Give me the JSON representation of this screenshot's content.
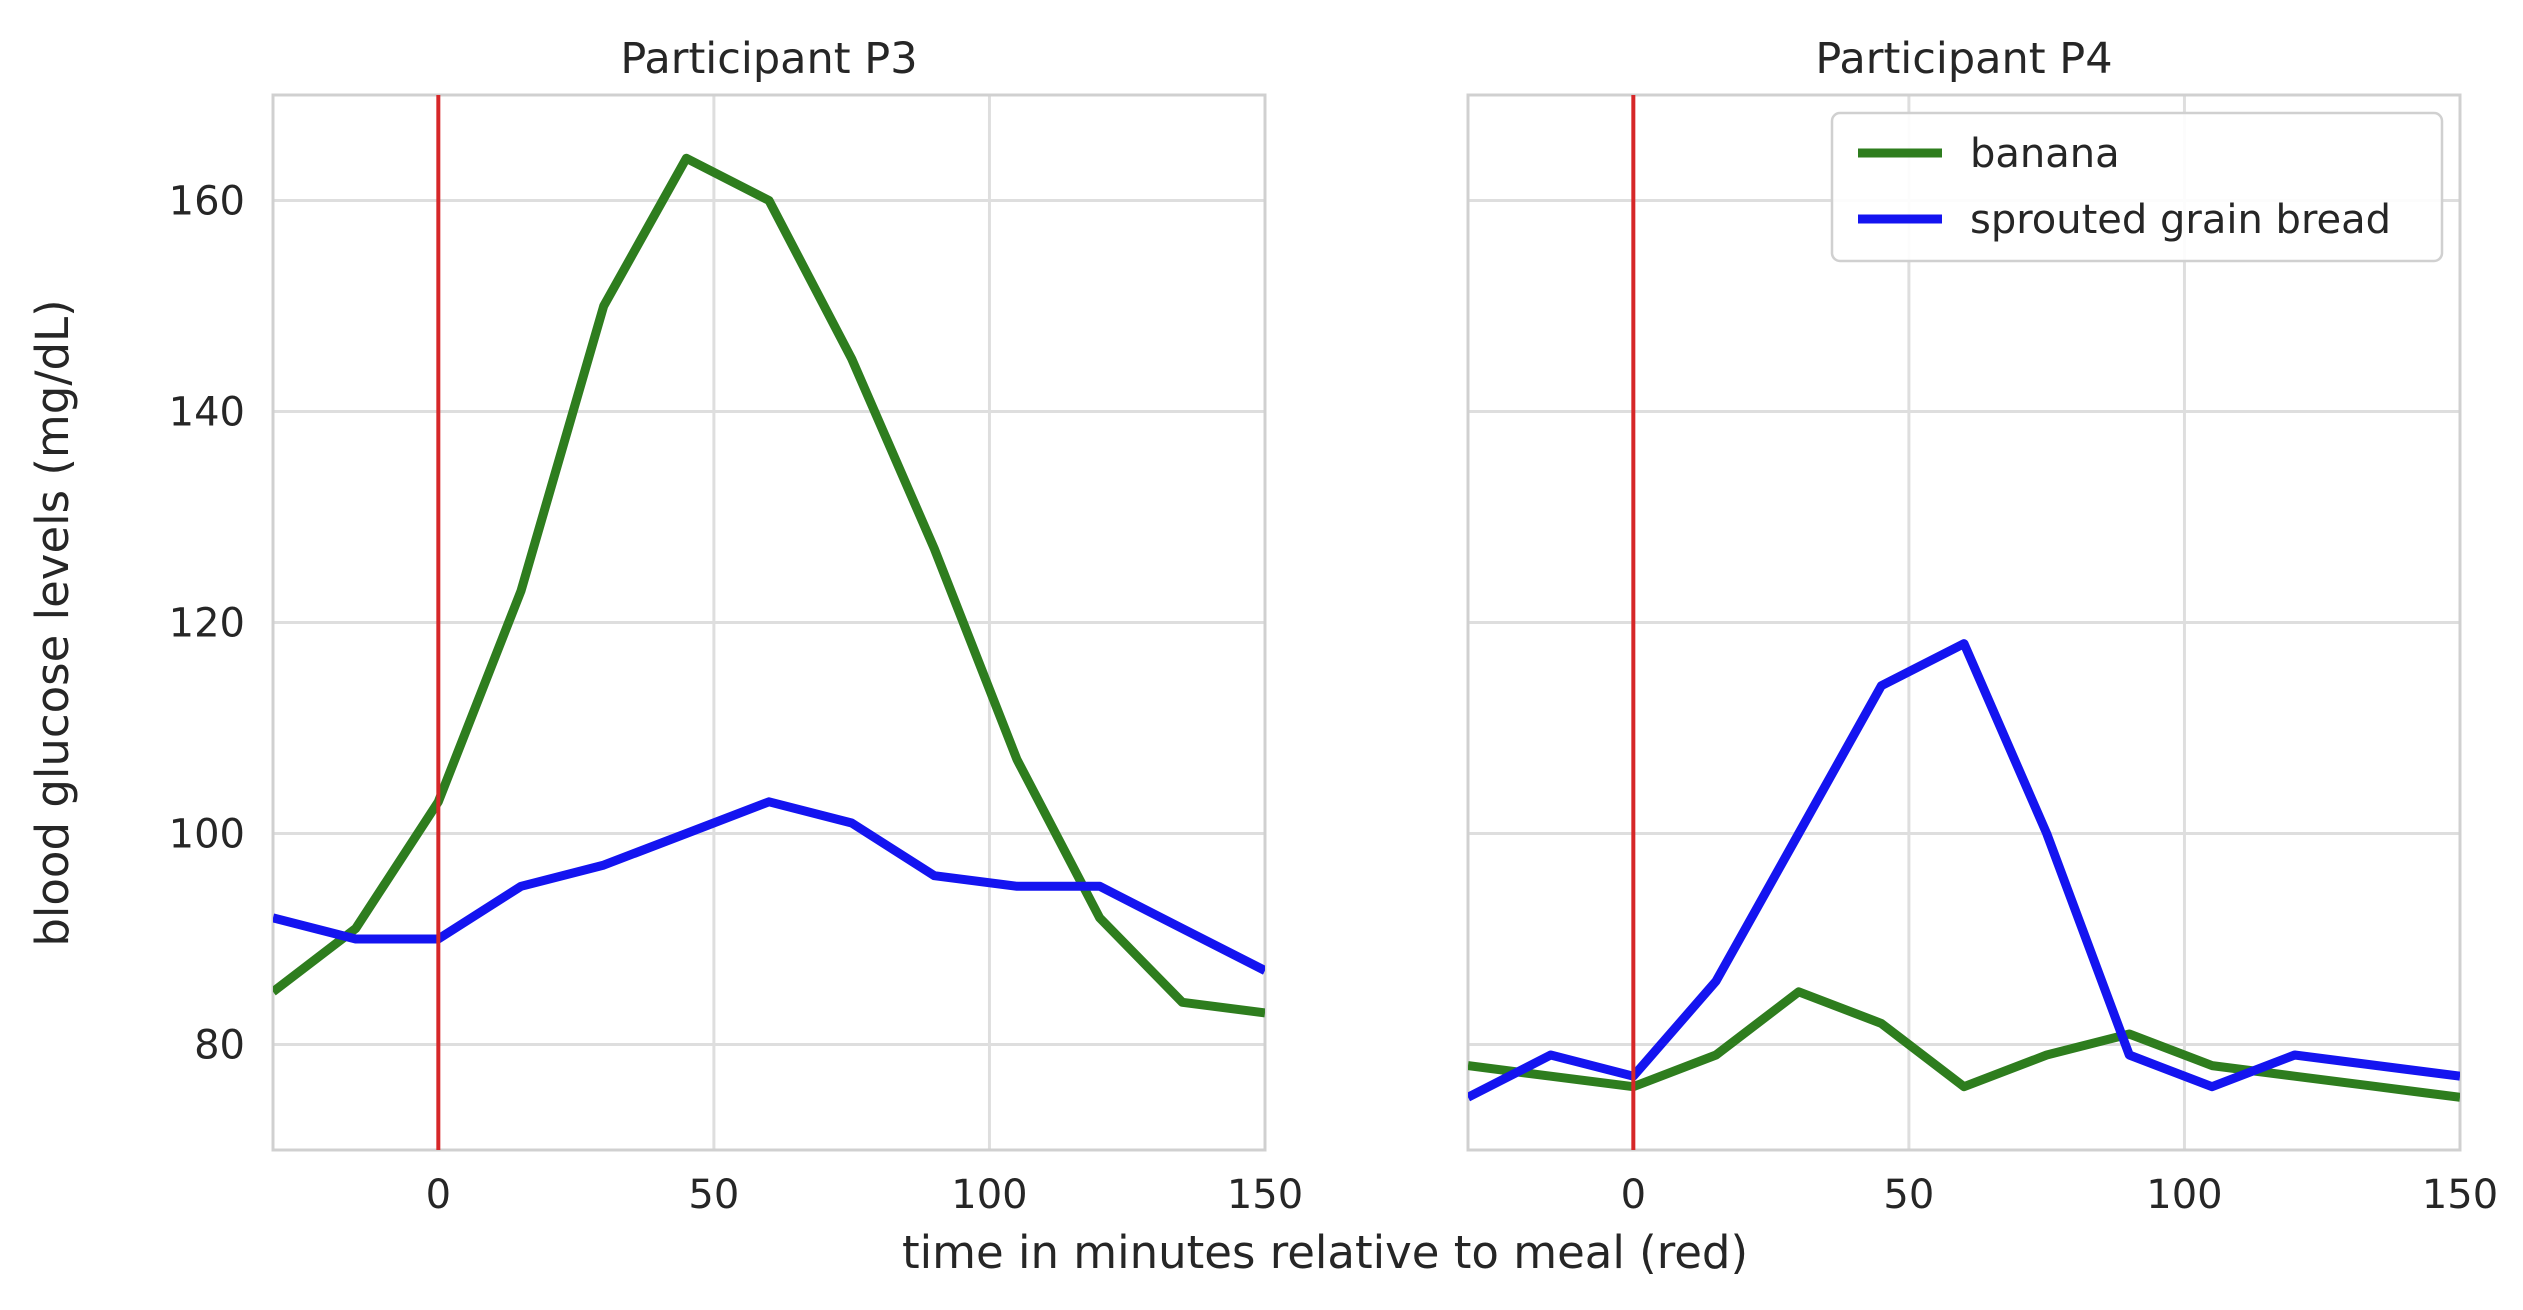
{
  "chart_data": {
    "type": "line",
    "xlabel": "time in minutes relative to meal (red)",
    "ylabel": "blood glucose levels (mg/dL)",
    "xlim": [
      -30,
      150
    ],
    "ylim": [
      70,
      170
    ],
    "x_ticks": [
      0,
      50,
      100,
      150
    ],
    "y_ticks": [
      80,
      100,
      120,
      140,
      160
    ],
    "grid": true,
    "meal_marker": {
      "x": 0,
      "color": "#d62728"
    },
    "legend": {
      "placement": "top-right",
      "entries": [
        {
          "label": "banana",
          "color": "#2e7d1e"
        },
        {
          "label": "sprouted grain bread",
          "color": "#1414f0"
        }
      ]
    },
    "panels": [
      {
        "title": "Participant P3",
        "series": [
          {
            "name": "banana",
            "color": "#2e7d1e",
            "x": [
              -30,
              -15,
              0,
              15,
              30,
              45,
              60,
              75,
              90,
              105,
              120,
              135,
              150
            ],
            "y": [
              85,
              91,
              103,
              123,
              150,
              164,
              160,
              145,
              127,
              107,
              92,
              84,
              83
            ]
          },
          {
            "name": "sprouted grain bread",
            "color": "#1414f0",
            "x": [
              -30,
              -15,
              0,
              15,
              30,
              45,
              60,
              75,
              90,
              105,
              120,
              135,
              150
            ],
            "y": [
              92,
              90,
              90,
              95,
              97,
              100,
              103,
              101,
              96,
              95,
              95,
              91,
              87
            ]
          }
        ]
      },
      {
        "title": "Participant P4",
        "series": [
          {
            "name": "banana",
            "color": "#2e7d1e",
            "x": [
              -30,
              -15,
              0,
              15,
              30,
              45,
              60,
              75,
              90,
              105,
              120,
              135,
              150
            ],
            "y": [
              78,
              77,
              76,
              79,
              85,
              82,
              76,
              79,
              81,
              78,
              77,
              76,
              75
            ]
          },
          {
            "name": "sprouted grain bread",
            "color": "#1414f0",
            "x": [
              -30,
              -15,
              0,
              15,
              30,
              45,
              60,
              75,
              90,
              105,
              120,
              135,
              150
            ],
            "y": [
              75,
              79,
              77,
              86,
              100,
              114,
              118,
              100,
              79,
              76,
              79,
              78,
              77
            ]
          }
        ]
      }
    ]
  }
}
